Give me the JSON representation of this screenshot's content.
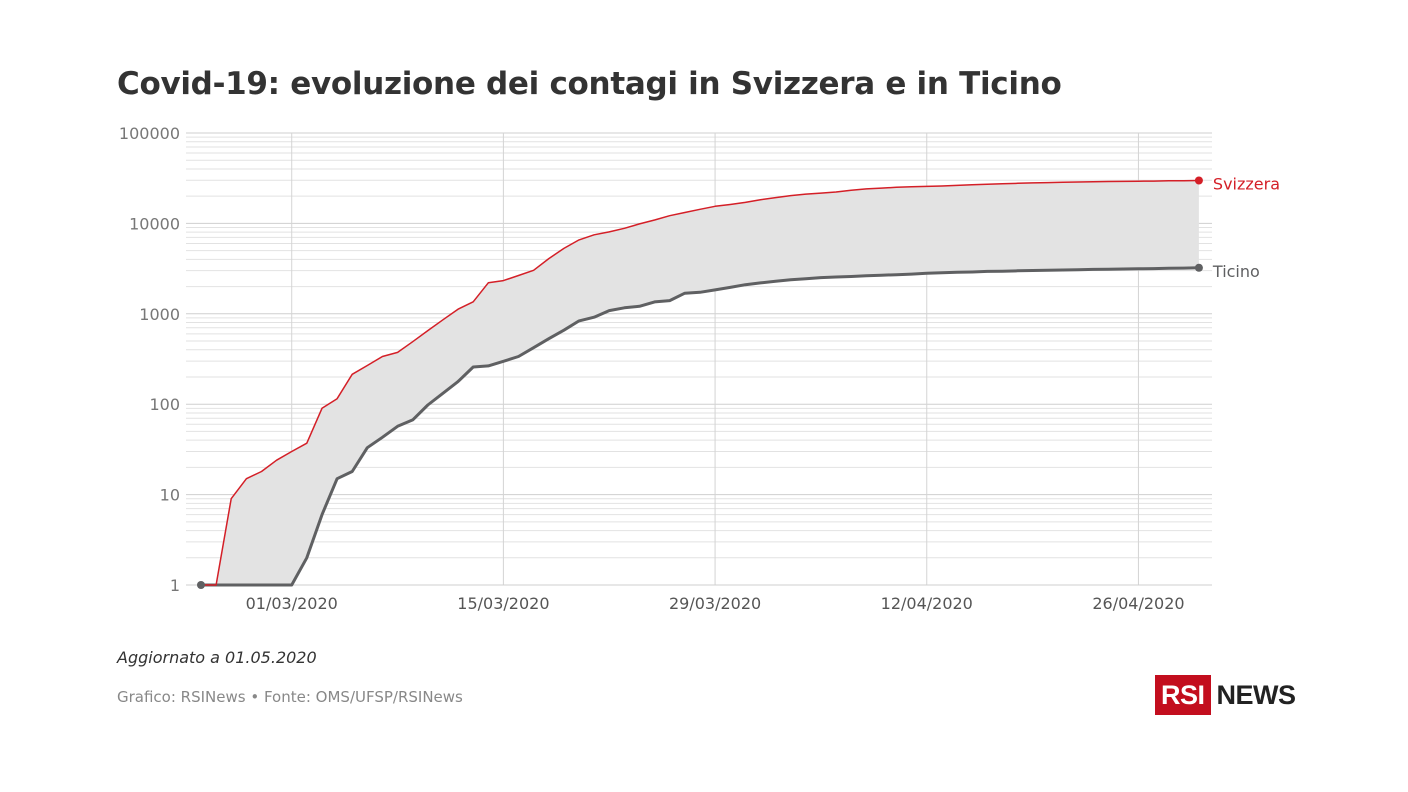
{
  "title": "Covid-19: evoluzione dei contagi in Svizzera e in Ticino",
  "note": "Aggiornato a 01.05.2020",
  "source": "Grafico: RSINews • Fonte: OMS/UFSP/RSINews",
  "logo": {
    "box_text": "RSI",
    "text": "NEWS",
    "color": "#c30e1e"
  },
  "chart_data": {
    "type": "area",
    "scale": "log",
    "ylim": [
      1,
      100000
    ],
    "x_start": "2020-02-24",
    "y_ticks": [
      "1",
      "10",
      "100",
      "1000",
      "10000",
      "100000"
    ],
    "y_tick_values": [
      1,
      10,
      100,
      1000,
      10000,
      100000
    ],
    "x_tick_labels": [
      "01/03/2020",
      "15/03/2020",
      "29/03/2020",
      "12/04/2020",
      "26/04/2020"
    ],
    "x_tick_days": [
      6,
      20,
      34,
      48,
      62
    ],
    "series": [
      {
        "name": "Svizzera",
        "color": "#d41f27",
        "days": [
          0,
          1,
          2,
          3,
          4,
          5,
          6,
          7,
          8,
          9,
          10,
          11,
          12,
          13,
          14,
          15,
          16,
          17,
          18,
          19,
          20,
          21,
          22,
          23,
          24,
          25,
          26,
          27,
          28,
          29,
          30,
          31,
          32,
          33,
          34,
          35,
          36,
          37,
          38,
          39,
          40,
          41,
          42,
          43,
          44,
          45,
          46,
          47,
          48,
          49,
          50,
          51,
          52,
          53,
          54,
          55,
          56,
          57,
          58,
          59,
          60,
          61,
          62,
          63,
          64,
          65,
          66
        ],
        "values": [
          1,
          1,
          9,
          15,
          18,
          24,
          30,
          37,
          90,
          115,
          214,
          268,
          337,
          374,
          491,
          652,
          858,
          1125,
          1359,
          2200,
          2330,
          2650,
          3028,
          4075,
          5294,
          6575,
          7474,
          8060,
          8836,
          9877,
          10897,
          12161,
          13213,
          14336,
          15475,
          16176,
          17068,
          18267,
          19303,
          20278,
          21100,
          21652,
          22253,
          23280,
          24051,
          24551,
          25107,
          25415,
          25688,
          25936,
          26336,
          26732,
          27078,
          27404,
          27740,
          28063,
          28268,
          28496,
          28677,
          28894,
          29061,
          29164,
          29264,
          29407,
          29586,
          29705,
          29817
        ]
      },
      {
        "name": "Ticino",
        "color": "#5f6062",
        "days": [
          0,
          1,
          2,
          3,
          4,
          5,
          6,
          7,
          8,
          9,
          10,
          11,
          12,
          13,
          14,
          15,
          16,
          17,
          18,
          19,
          20,
          21,
          22,
          23,
          24,
          25,
          26,
          27,
          28,
          29,
          30,
          31,
          32,
          33,
          34,
          35,
          36,
          37,
          38,
          39,
          40,
          41,
          42,
          43,
          44,
          45,
          46,
          47,
          48,
          49,
          50,
          51,
          52,
          53,
          54,
          55,
          56,
          57,
          58,
          59,
          60,
          61,
          62,
          63,
          64,
          65,
          66
        ],
        "values": [
          1,
          1,
          1,
          1,
          1,
          1,
          1,
          2,
          6,
          15,
          18,
          33,
          43,
          57,
          67,
          98,
          132,
          178,
          258,
          265,
          298,
          337,
          422,
          531,
          658,
          834,
          918,
          1086,
          1165,
          1211,
          1354,
          1401,
          1688,
          1727,
          1837,
          1961,
          2097,
          2195,
          2292,
          2378,
          2447,
          2514,
          2551,
          2587,
          2634,
          2672,
          2710,
          2746,
          2807,
          2847,
          2879,
          2900,
          2941,
          2960,
          2990,
          3014,
          3035,
          3053,
          3078,
          3096,
          3115,
          3128,
          3147,
          3163,
          3185,
          3202,
          3231
        ]
      }
    ]
  }
}
